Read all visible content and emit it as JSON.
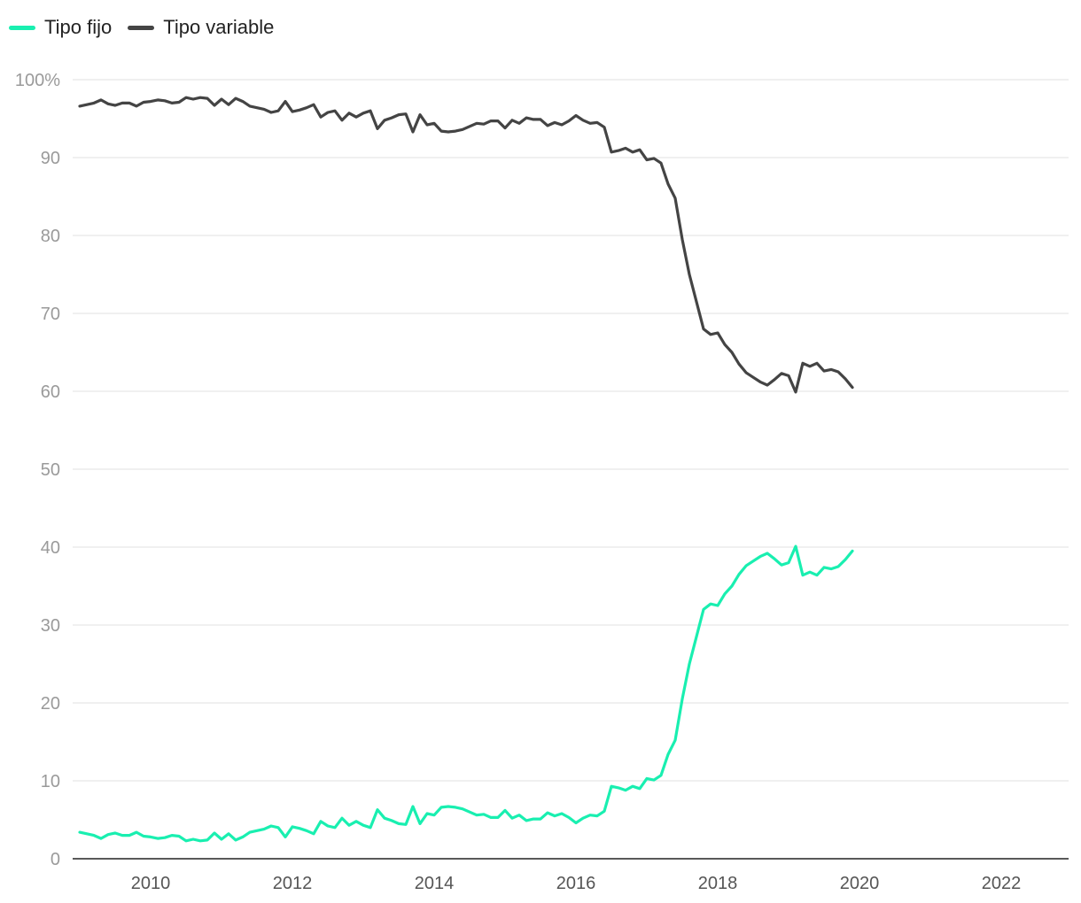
{
  "chart_data": {
    "type": "line",
    "title": "",
    "xlabel": "",
    "ylabel": "",
    "xlim": [
      2008.9,
      2022.95
    ],
    "ylim": [
      0,
      100
    ],
    "y_ticks": [
      0,
      10,
      20,
      30,
      40,
      50,
      60,
      70,
      80,
      90,
      100
    ],
    "y_tick_labels": [
      "0",
      "10",
      "20",
      "30",
      "40",
      "50",
      "60",
      "70",
      "80",
      "90",
      "100%"
    ],
    "x_ticks": [
      2010,
      2012,
      2014,
      2016,
      2018,
      2020,
      2022
    ],
    "x_tick_labels": [
      "2010",
      "2012",
      "2014",
      "2016",
      "2018",
      "2020",
      "2022"
    ],
    "grid": true,
    "legend": "top-left",
    "series": [
      {
        "name": "Tipo fijo",
        "color": "#19efb0",
        "points": [
          [
            2009.0,
            3.4
          ],
          [
            2009.1,
            3.2
          ],
          [
            2009.2,
            3.0
          ],
          [
            2009.3,
            2.6
          ],
          [
            2009.4,
            3.1
          ],
          [
            2009.5,
            3.3
          ],
          [
            2009.6,
            3.0
          ],
          [
            2009.7,
            3.0
          ],
          [
            2009.8,
            3.4
          ],
          [
            2009.9,
            2.9
          ],
          [
            2010.0,
            2.8
          ],
          [
            2010.1,
            2.6
          ],
          [
            2010.2,
            2.7
          ],
          [
            2010.3,
            3.0
          ],
          [
            2010.4,
            2.9
          ],
          [
            2010.5,
            2.3
          ],
          [
            2010.6,
            2.5
          ],
          [
            2010.7,
            2.3
          ],
          [
            2010.8,
            2.4
          ],
          [
            2010.9,
            3.3
          ],
          [
            2011.0,
            2.5
          ],
          [
            2011.1,
            3.2
          ],
          [
            2011.2,
            2.4
          ],
          [
            2011.3,
            2.8
          ],
          [
            2011.4,
            3.4
          ],
          [
            2011.5,
            3.6
          ],
          [
            2011.6,
            3.8
          ],
          [
            2011.7,
            4.2
          ],
          [
            2011.8,
            4.0
          ],
          [
            2011.9,
            2.8
          ],
          [
            2012.0,
            4.1
          ],
          [
            2012.1,
            3.9
          ],
          [
            2012.2,
            3.6
          ],
          [
            2012.3,
            3.2
          ],
          [
            2012.4,
            4.8
          ],
          [
            2012.5,
            4.2
          ],
          [
            2012.6,
            4.0
          ],
          [
            2012.7,
            5.2
          ],
          [
            2012.8,
            4.3
          ],
          [
            2012.9,
            4.8
          ],
          [
            2013.0,
            4.3
          ],
          [
            2013.1,
            4.0
          ],
          [
            2013.2,
            6.3
          ],
          [
            2013.3,
            5.2
          ],
          [
            2013.4,
            4.9
          ],
          [
            2013.5,
            4.5
          ],
          [
            2013.6,
            4.4
          ],
          [
            2013.7,
            6.7
          ],
          [
            2013.8,
            4.5
          ],
          [
            2013.9,
            5.8
          ],
          [
            2014.0,
            5.6
          ],
          [
            2014.1,
            6.6
          ],
          [
            2014.2,
            6.7
          ],
          [
            2014.3,
            6.6
          ],
          [
            2014.4,
            6.4
          ],
          [
            2014.5,
            6.0
          ],
          [
            2014.6,
            5.6
          ],
          [
            2014.7,
            5.7
          ],
          [
            2014.8,
            5.3
          ],
          [
            2014.9,
            5.3
          ],
          [
            2015.0,
            6.2
          ],
          [
            2015.1,
            5.2
          ],
          [
            2015.2,
            5.6
          ],
          [
            2015.3,
            4.9
          ],
          [
            2015.4,
            5.1
          ],
          [
            2015.5,
            5.1
          ],
          [
            2015.6,
            5.9
          ],
          [
            2015.7,
            5.5
          ],
          [
            2015.8,
            5.8
          ],
          [
            2015.9,
            5.3
          ],
          [
            2016.0,
            4.6
          ],
          [
            2016.1,
            5.2
          ],
          [
            2016.2,
            5.6
          ],
          [
            2016.3,
            5.5
          ],
          [
            2016.4,
            6.1
          ],
          [
            2016.5,
            9.3
          ],
          [
            2016.6,
            9.1
          ],
          [
            2016.7,
            8.8
          ],
          [
            2016.8,
            9.3
          ],
          [
            2016.9,
            9.0
          ],
          [
            2017.0,
            10.3
          ],
          [
            2017.1,
            10.1
          ],
          [
            2017.2,
            10.7
          ],
          [
            2017.3,
            13.4
          ],
          [
            2017.4,
            15.2
          ],
          [
            2017.5,
            20.5
          ],
          [
            2017.6,
            25.0
          ],
          [
            2017.7,
            28.5
          ],
          [
            2017.8,
            32.0
          ],
          [
            2017.9,
            32.7
          ],
          [
            2018.0,
            32.5
          ],
          [
            2018.1,
            34.0
          ],
          [
            2018.2,
            35.0
          ],
          [
            2018.3,
            36.5
          ],
          [
            2018.4,
            37.6
          ],
          [
            2018.5,
            38.2
          ],
          [
            2018.6,
            38.8
          ],
          [
            2018.7,
            39.2
          ],
          [
            2018.8,
            38.5
          ],
          [
            2018.9,
            37.7
          ],
          [
            2019.0,
            38.0
          ],
          [
            2019.1,
            40.1
          ],
          [
            2019.2,
            36.4
          ],
          [
            2019.3,
            36.8
          ],
          [
            2019.4,
            36.4
          ],
          [
            2019.5,
            37.4
          ],
          [
            2019.6,
            37.2
          ],
          [
            2019.7,
            37.5
          ],
          [
            2019.8,
            38.4
          ],
          [
            2019.9,
            39.5
          ]
        ]
      },
      {
        "name": "Tipo variable",
        "color": "#444444",
        "points": [
          [
            2009.0,
            96.6
          ],
          [
            2009.1,
            96.8
          ],
          [
            2009.2,
            97.0
          ],
          [
            2009.3,
            97.4
          ],
          [
            2009.4,
            96.9
          ],
          [
            2009.5,
            96.7
          ],
          [
            2009.6,
            97.0
          ],
          [
            2009.7,
            97.0
          ],
          [
            2009.8,
            96.6
          ],
          [
            2009.9,
            97.1
          ],
          [
            2010.0,
            97.2
          ],
          [
            2010.1,
            97.4
          ],
          [
            2010.2,
            97.3
          ],
          [
            2010.3,
            97.0
          ],
          [
            2010.4,
            97.1
          ],
          [
            2010.5,
            97.7
          ],
          [
            2010.6,
            97.5
          ],
          [
            2010.7,
            97.7
          ],
          [
            2010.8,
            97.6
          ],
          [
            2010.9,
            96.7
          ],
          [
            2011.0,
            97.5
          ],
          [
            2011.1,
            96.8
          ],
          [
            2011.2,
            97.6
          ],
          [
            2011.3,
            97.2
          ],
          [
            2011.4,
            96.6
          ],
          [
            2011.5,
            96.4
          ],
          [
            2011.6,
            96.2
          ],
          [
            2011.7,
            95.8
          ],
          [
            2011.8,
            96.0
          ],
          [
            2011.9,
            97.2
          ],
          [
            2012.0,
            95.9
          ],
          [
            2012.1,
            96.1
          ],
          [
            2012.2,
            96.4
          ],
          [
            2012.3,
            96.8
          ],
          [
            2012.4,
            95.2
          ],
          [
            2012.5,
            95.8
          ],
          [
            2012.6,
            96.0
          ],
          [
            2012.7,
            94.8
          ],
          [
            2012.8,
            95.7
          ],
          [
            2012.9,
            95.2
          ],
          [
            2013.0,
            95.7
          ],
          [
            2013.1,
            96.0
          ],
          [
            2013.2,
            93.7
          ],
          [
            2013.3,
            94.8
          ],
          [
            2013.4,
            95.1
          ],
          [
            2013.5,
            95.5
          ],
          [
            2013.6,
            95.6
          ],
          [
            2013.7,
            93.3
          ],
          [
            2013.8,
            95.5
          ],
          [
            2013.9,
            94.2
          ],
          [
            2014.0,
            94.4
          ],
          [
            2014.1,
            93.4
          ],
          [
            2014.2,
            93.3
          ],
          [
            2014.3,
            93.4
          ],
          [
            2014.4,
            93.6
          ],
          [
            2014.5,
            94.0
          ],
          [
            2014.6,
            94.4
          ],
          [
            2014.7,
            94.3
          ],
          [
            2014.8,
            94.7
          ],
          [
            2014.9,
            94.7
          ],
          [
            2015.0,
            93.8
          ],
          [
            2015.1,
            94.8
          ],
          [
            2015.2,
            94.4
          ],
          [
            2015.3,
            95.1
          ],
          [
            2015.4,
            94.9
          ],
          [
            2015.5,
            94.9
          ],
          [
            2015.6,
            94.1
          ],
          [
            2015.7,
            94.5
          ],
          [
            2015.8,
            94.2
          ],
          [
            2015.9,
            94.7
          ],
          [
            2016.0,
            95.4
          ],
          [
            2016.1,
            94.8
          ],
          [
            2016.2,
            94.4
          ],
          [
            2016.3,
            94.5
          ],
          [
            2016.4,
            93.9
          ],
          [
            2016.5,
            90.7
          ],
          [
            2016.6,
            90.9
          ],
          [
            2016.7,
            91.2
          ],
          [
            2016.8,
            90.7
          ],
          [
            2016.9,
            91.0
          ],
          [
            2017.0,
            89.7
          ],
          [
            2017.1,
            89.9
          ],
          [
            2017.2,
            89.3
          ],
          [
            2017.3,
            86.6
          ],
          [
            2017.4,
            84.8
          ],
          [
            2017.5,
            79.5
          ],
          [
            2017.6,
            75.0
          ],
          [
            2017.7,
            71.5
          ],
          [
            2017.8,
            68.0
          ],
          [
            2017.9,
            67.3
          ],
          [
            2018.0,
            67.5
          ],
          [
            2018.1,
            66.0
          ],
          [
            2018.2,
            65.0
          ],
          [
            2018.3,
            63.5
          ],
          [
            2018.4,
            62.4
          ],
          [
            2018.5,
            61.8
          ],
          [
            2018.6,
            61.2
          ],
          [
            2018.7,
            60.8
          ],
          [
            2018.8,
            61.5
          ],
          [
            2018.9,
            62.3
          ],
          [
            2019.0,
            62.0
          ],
          [
            2019.1,
            59.9
          ],
          [
            2019.2,
            63.6
          ],
          [
            2019.3,
            63.2
          ],
          [
            2019.4,
            63.6
          ],
          [
            2019.5,
            62.6
          ],
          [
            2019.6,
            62.8
          ],
          [
            2019.7,
            62.5
          ],
          [
            2019.8,
            61.6
          ],
          [
            2019.9,
            60.5
          ]
        ]
      }
    ]
  }
}
